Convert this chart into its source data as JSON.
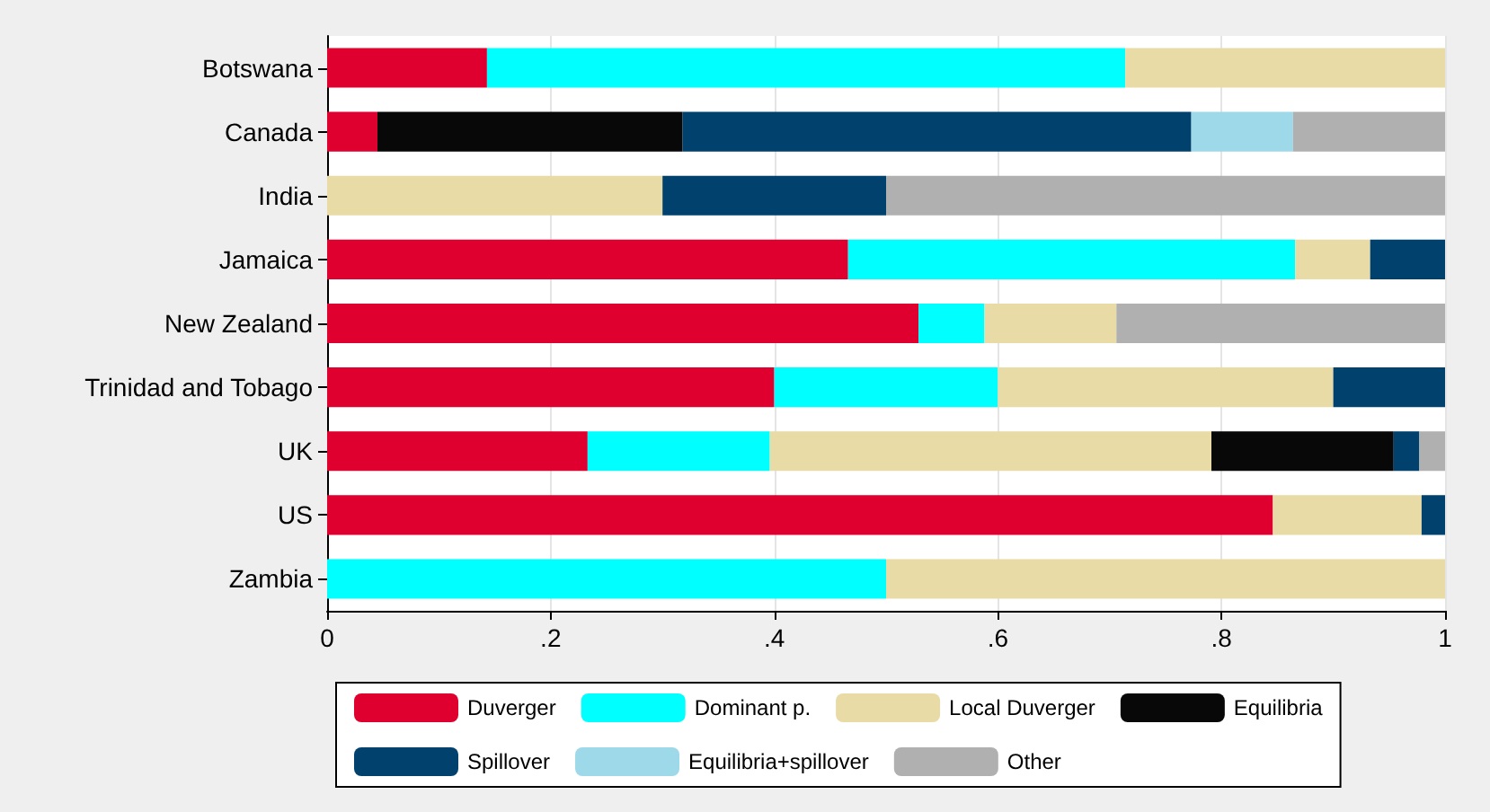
{
  "chart_data": {
    "type": "bar",
    "orientation": "horizontal",
    "stacked": true,
    "categories": [
      "Botswana",
      "Canada",
      "India",
      "Jamaica",
      "New Zealand",
      "Trinidad and Tobago",
      "UK",
      "US",
      "Zambia"
    ],
    "series": [
      {
        "name": "Duverger",
        "color": "#e0002f",
        "values": [
          0.143,
          0.045,
          null,
          0.466,
          0.529,
          0.4,
          0.233,
          0.846,
          null
        ]
      },
      {
        "name": "Dominant p.",
        "color": "#00ffff",
        "values": [
          0.571,
          null,
          null,
          0.4,
          0.059,
          0.2,
          0.163,
          null,
          0.5
        ]
      },
      {
        "name": "Local Duverger",
        "color": "#e8dba6",
        "values": [
          0.286,
          null,
          0.3,
          0.067,
          0.118,
          0.3,
          0.395,
          0.133,
          0.5
        ]
      },
      {
        "name": "Equilibria",
        "color": "#080808",
        "values": [
          null,
          0.273,
          null,
          null,
          null,
          null,
          0.163,
          null,
          null
        ]
      },
      {
        "name": "Spillover",
        "color": "#00416e",
        "values": [
          null,
          0.455,
          0.2,
          0.067,
          null,
          0.1,
          0.023,
          0.021,
          null
        ]
      },
      {
        "name": "Equilibria+spillover",
        "color": "#9dd9e8",
        "values": [
          null,
          0.091,
          null,
          null,
          null,
          null,
          null,
          null,
          null
        ]
      },
      {
        "name": "Other",
        "color": "#b0b0b0",
        "values": [
          null,
          0.136,
          0.5,
          null,
          0.294,
          null,
          0.023,
          null,
          null
        ]
      }
    ],
    "xlim": [
      0,
      1
    ],
    "xticks": [
      0,
      {
        "value": 0.2,
        "label": ".2"
      },
      {
        "value": 0.4,
        "label": ".4"
      },
      {
        "value": 0.6,
        "label": ".6"
      },
      {
        "value": 0.8,
        "label": ".8"
      },
      1
    ],
    "grid": "x",
    "legend": "bottom"
  }
}
